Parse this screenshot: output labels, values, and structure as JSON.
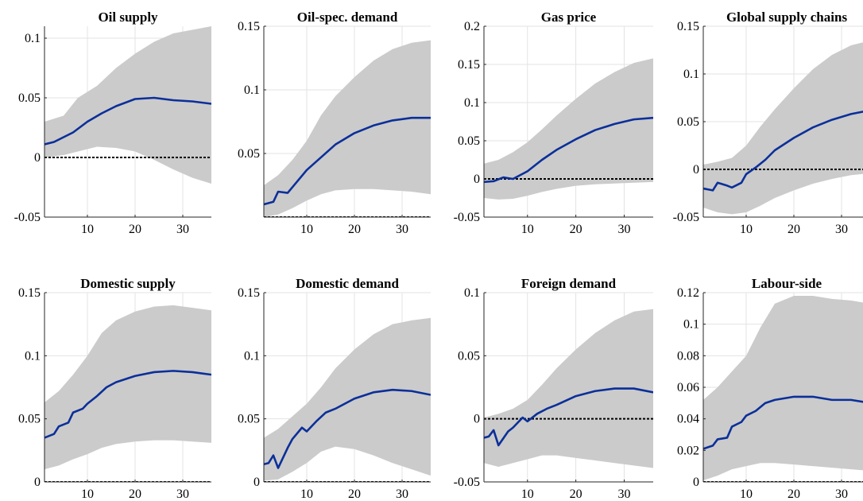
{
  "chart_data": [
    {
      "type": "line",
      "title": "Oil supply",
      "xlim": [
        1,
        36
      ],
      "ylim": [
        -0.05,
        0.11
      ],
      "xticks": [
        10,
        20,
        30
      ],
      "yticks": [
        -0.05,
        0,
        0.05,
        0.1
      ],
      "ytick_labels": [
        "-0.05",
        "0",
        "0.05",
        "0.1"
      ],
      "grid": true,
      "zero_line": true,
      "series": [
        {
          "x": [
            1,
            3,
            5,
            7,
            10,
            13,
            16,
            20,
            24,
            28,
            32,
            36
          ],
          "y": [
            0.011,
            0.013,
            0.017,
            0.021,
            0.03,
            0.037,
            0.043,
            0.049,
            0.05,
            0.048,
            0.047,
            0.045
          ]
        }
      ],
      "band": {
        "x": [
          1,
          5,
          8,
          12,
          16,
          20,
          24,
          28,
          32,
          36
        ],
        "upper": [
          0.03,
          0.035,
          0.05,
          0.06,
          0.075,
          0.087,
          0.097,
          0.104,
          0.107,
          0.11
        ],
        "lower": [
          0.0,
          0.002,
          0.005,
          0.009,
          0.008,
          0.005,
          -0.002,
          -0.01,
          -0.017,
          -0.022
        ]
      }
    },
    {
      "type": "line",
      "title": "Oil-spec. demand",
      "xlim": [
        1,
        36
      ],
      "ylim": [
        0,
        0.15
      ],
      "xticks": [
        10,
        20,
        30
      ],
      "yticks": [
        0.05,
        0.1,
        0.15
      ],
      "ytick_labels": [
        "0.05",
        "0.1",
        "0.15"
      ],
      "grid": true,
      "zero_line": true,
      "series": [
        {
          "x": [
            1,
            3,
            4,
            6,
            8,
            10,
            13,
            16,
            20,
            24,
            28,
            32,
            36
          ],
          "y": [
            0.01,
            0.012,
            0.02,
            0.019,
            0.028,
            0.037,
            0.047,
            0.057,
            0.066,
            0.072,
            0.076,
            0.078,
            0.078
          ]
        }
      ],
      "band": {
        "x": [
          1,
          4,
          7,
          10,
          13,
          16,
          20,
          24,
          28,
          32,
          36
        ],
        "upper": [
          0.025,
          0.033,
          0.045,
          0.06,
          0.08,
          0.095,
          0.11,
          0.123,
          0.132,
          0.137,
          0.139
        ],
        "lower": [
          0.0,
          0.002,
          0.007,
          0.013,
          0.018,
          0.021,
          0.022,
          0.022,
          0.021,
          0.02,
          0.018
        ]
      }
    },
    {
      "type": "line",
      "title": "Gas price",
      "xlim": [
        1,
        36
      ],
      "ylim": [
        -0.05,
        0.2
      ],
      "xticks": [
        10,
        20,
        30
      ],
      "yticks": [
        -0.05,
        0,
        0.05,
        0.1,
        0.15,
        0.2
      ],
      "ytick_labels": [
        "-0.05",
        "0",
        "0.05",
        "0.1",
        "0.15",
        "0.2"
      ],
      "grid": true,
      "zero_line": true,
      "series": [
        {
          "x": [
            1,
            3,
            5,
            7,
            10,
            13,
            16,
            20,
            24,
            28,
            32,
            36
          ],
          "y": [
            -0.004,
            -0.003,
            0.002,
            0.0,
            0.01,
            0.025,
            0.038,
            0.052,
            0.064,
            0.072,
            0.078,
            0.08
          ]
        }
      ],
      "band": {
        "x": [
          1,
          4,
          7,
          10,
          13,
          16,
          20,
          24,
          28,
          32,
          36
        ],
        "upper": [
          0.02,
          0.025,
          0.035,
          0.048,
          0.065,
          0.083,
          0.105,
          0.125,
          0.14,
          0.152,
          0.158
        ],
        "lower": [
          -0.025,
          -0.027,
          -0.026,
          -0.022,
          -0.017,
          -0.013,
          -0.009,
          -0.007,
          -0.006,
          -0.005,
          -0.004
        ]
      }
    },
    {
      "type": "line",
      "title": "Global supply chains",
      "xlim": [
        1,
        36
      ],
      "ylim": [
        -0.05,
        0.15
      ],
      "xticks": [
        10,
        20,
        30
      ],
      "yticks": [
        -0.05,
        0,
        0.05,
        0.1,
        0.15
      ],
      "ytick_labels": [
        "-0.05",
        "0",
        "0.05",
        "0.1",
        "0.15"
      ],
      "grid": true,
      "zero_line": true,
      "series": [
        {
          "x": [
            1,
            3,
            4,
            6,
            7,
            9,
            10,
            12,
            14,
            16,
            20,
            24,
            28,
            32,
            36
          ],
          "y": [
            -0.02,
            -0.022,
            -0.014,
            -0.017,
            -0.019,
            -0.014,
            -0.005,
            0.002,
            0.01,
            0.02,
            0.033,
            0.044,
            0.052,
            0.058,
            0.062
          ]
        }
      ],
      "band": {
        "x": [
          1,
          4,
          7,
          10,
          13,
          16,
          20,
          24,
          28,
          32,
          36
        ],
        "upper": [
          0.005,
          0.008,
          0.012,
          0.025,
          0.045,
          0.063,
          0.085,
          0.105,
          0.12,
          0.13,
          0.135
        ],
        "lower": [
          -0.04,
          -0.045,
          -0.047,
          -0.045,
          -0.038,
          -0.03,
          -0.022,
          -0.015,
          -0.01,
          -0.006,
          -0.004
        ]
      }
    },
    {
      "type": "line",
      "title": "Domestic supply",
      "xlim": [
        1,
        36
      ],
      "ylim": [
        0,
        0.15
      ],
      "xticks": [
        10,
        20,
        30
      ],
      "yticks": [
        0,
        0.05,
        0.1,
        0.15
      ],
      "ytick_labels": [
        "0",
        "0.05",
        "0.1",
        "0.15"
      ],
      "grid": true,
      "zero_line": true,
      "series": [
        {
          "x": [
            1,
            3,
            4,
            6,
            7,
            9,
            10,
            12,
            14,
            16,
            20,
            24,
            28,
            32,
            36
          ],
          "y": [
            0.035,
            0.038,
            0.044,
            0.047,
            0.055,
            0.058,
            0.062,
            0.068,
            0.075,
            0.079,
            0.084,
            0.087,
            0.088,
            0.087,
            0.085
          ]
        }
      ],
      "band": {
        "x": [
          1,
          4,
          7,
          10,
          13,
          16,
          20,
          24,
          28,
          32,
          36
        ],
        "upper": [
          0.063,
          0.072,
          0.085,
          0.1,
          0.118,
          0.128,
          0.135,
          0.139,
          0.14,
          0.138,
          0.136
        ],
        "lower": [
          0.01,
          0.013,
          0.018,
          0.022,
          0.027,
          0.03,
          0.032,
          0.033,
          0.033,
          0.032,
          0.031
        ]
      }
    },
    {
      "type": "line",
      "title": "Domestic demand",
      "xlim": [
        1,
        36
      ],
      "ylim": [
        0,
        0.15
      ],
      "xticks": [
        10,
        20,
        30
      ],
      "yticks": [
        0,
        0.05,
        0.1,
        0.15
      ],
      "ytick_labels": [
        "0",
        "0.05",
        "0.1",
        "0.15"
      ],
      "grid": true,
      "zero_line": true,
      "series": [
        {
          "x": [
            1,
            2,
            3,
            4,
            6,
            7,
            9,
            10,
            12,
            14,
            16,
            20,
            24,
            28,
            32,
            36
          ],
          "y": [
            0.014,
            0.015,
            0.021,
            0.011,
            0.027,
            0.034,
            0.043,
            0.04,
            0.048,
            0.055,
            0.058,
            0.066,
            0.071,
            0.073,
            0.072,
            0.069
          ]
        }
      ],
      "band": {
        "x": [
          1,
          4,
          7,
          10,
          13,
          16,
          20,
          24,
          28,
          32,
          36
        ],
        "upper": [
          0.035,
          0.042,
          0.052,
          0.062,
          0.075,
          0.09,
          0.105,
          0.117,
          0.125,
          0.128,
          0.13
        ],
        "lower": [
          0.001,
          0.002,
          0.008,
          0.015,
          0.024,
          0.028,
          0.026,
          0.021,
          0.015,
          0.01,
          0.005
        ]
      }
    },
    {
      "type": "line",
      "title": "Foreign demand",
      "xlim": [
        1,
        36
      ],
      "ylim": [
        -0.05,
        0.1
      ],
      "xticks": [
        10,
        20,
        30
      ],
      "yticks": [
        -0.05,
        0,
        0.05,
        0.1
      ],
      "ytick_labels": [
        "-0.05",
        "0",
        "0.05",
        "0.1"
      ],
      "grid": true,
      "zero_line": true,
      "series": [
        {
          "x": [
            1,
            2,
            3,
            4,
            6,
            7,
            9,
            10,
            12,
            14,
            16,
            20,
            24,
            28,
            32,
            36
          ],
          "y": [
            -0.015,
            -0.014,
            -0.009,
            -0.021,
            -0.01,
            -0.007,
            0.001,
            -0.002,
            0.004,
            0.008,
            0.011,
            0.018,
            0.022,
            0.024,
            0.024,
            0.021
          ]
        }
      ],
      "band": {
        "x": [
          1,
          4,
          7,
          10,
          13,
          16,
          20,
          24,
          28,
          32,
          36
        ],
        "upper": [
          0.001,
          0.004,
          0.008,
          0.015,
          0.027,
          0.04,
          0.055,
          0.068,
          0.078,
          0.085,
          0.087
        ],
        "lower": [
          -0.035,
          -0.038,
          -0.035,
          -0.032,
          -0.029,
          -0.029,
          -0.031,
          -0.033,
          -0.035,
          -0.037,
          -0.039
        ]
      }
    },
    {
      "type": "line",
      "title": "Labour-side",
      "xlim": [
        1,
        36
      ],
      "ylim": [
        0,
        0.12
      ],
      "xticks": [
        10,
        20,
        30
      ],
      "yticks": [
        0,
        0.02,
        0.04,
        0.06,
        0.08,
        0.1,
        0.12
      ],
      "ytick_labels": [
        "0",
        "0.02",
        "0.04",
        "0.06",
        "0.08",
        "0.1",
        "0.12"
      ],
      "grid": true,
      "zero_line": true,
      "series": [
        {
          "x": [
            1,
            3,
            4,
            6,
            7,
            9,
            10,
            12,
            14,
            16,
            20,
            24,
            28,
            32,
            36
          ],
          "y": [
            0.021,
            0.023,
            0.027,
            0.028,
            0.035,
            0.038,
            0.042,
            0.045,
            0.05,
            0.052,
            0.054,
            0.054,
            0.052,
            0.052,
            0.05
          ]
        }
      ],
      "band": {
        "x": [
          1,
          4,
          7,
          10,
          13,
          16,
          20,
          24,
          28,
          32,
          36
        ],
        "upper": [
          0.052,
          0.06,
          0.07,
          0.08,
          0.098,
          0.113,
          0.118,
          0.118,
          0.116,
          0.115,
          0.113
        ],
        "lower": [
          0.001,
          0.004,
          0.008,
          0.01,
          0.012,
          0.012,
          0.011,
          0.01,
          0.009,
          0.008,
          0.007
        ]
      }
    }
  ]
}
